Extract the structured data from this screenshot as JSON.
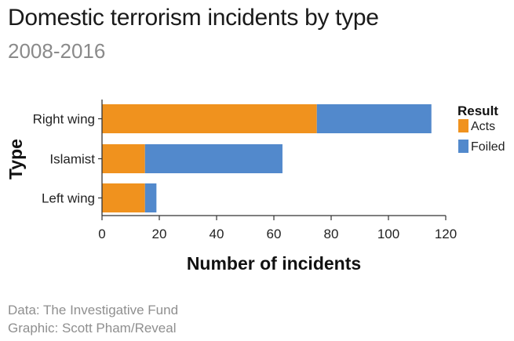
{
  "header": {
    "title": "Domestic terrorism incidents by type",
    "subtitle": "2008-2016"
  },
  "footer": {
    "data_credit": "Data: The Investigative Fund",
    "graphic_credit": "Graphic: Scott Pham/Reveal"
  },
  "chart_data": {
    "type": "bar",
    "orientation": "horizontal",
    "stacked": true,
    "title": "Domestic terrorism incidents by type",
    "subtitle": "2008-2016",
    "xlabel": "Number of incidents",
    "ylabel": "Type",
    "categories": [
      "Right wing",
      "Islamist",
      "Left wing"
    ],
    "series": [
      {
        "name": "Acts",
        "values": [
          75,
          15,
          15
        ],
        "color": "#f0921e"
      },
      {
        "name": "Foiled",
        "values": [
          40,
          48,
          4
        ],
        "color": "#5289cc"
      }
    ],
    "xlim": [
      0,
      120
    ],
    "xticks": [
      0,
      20,
      40,
      60,
      80,
      100,
      120
    ],
    "legend": {
      "title": "Result",
      "placement": "right"
    },
    "grid": false
  }
}
